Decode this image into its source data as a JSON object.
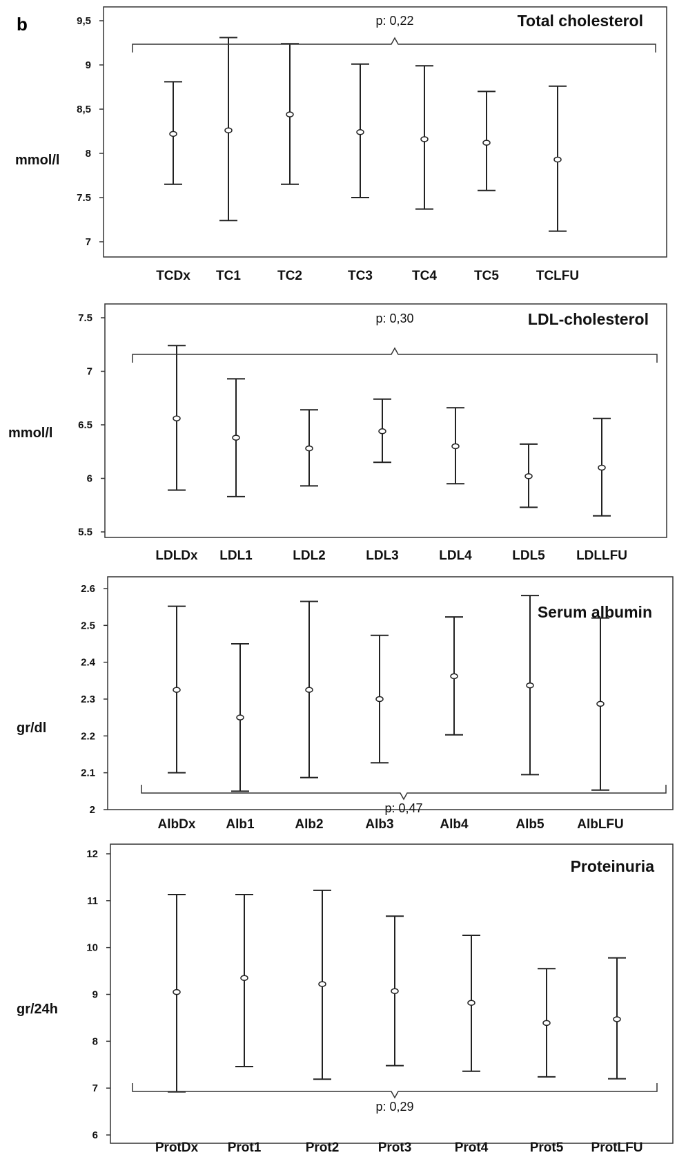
{
  "panel_label": "b",
  "chart_data": [
    {
      "type": "errorbar",
      "title": "Total cholesterol",
      "ylabel": "mmol/l",
      "ylim": [
        7,
        9.5
      ],
      "yticks": [
        "7",
        "7.5",
        "8",
        "8,5",
        "9",
        "9,5"
      ],
      "categories": [
        "TCDx",
        "TC1",
        "TC2",
        "TC3",
        "TC4",
        "TC5",
        "TCLFU"
      ],
      "means": [
        8.22,
        8.26,
        8.44,
        8.24,
        8.16,
        8.12,
        7.93
      ],
      "lower": [
        7.65,
        7.24,
        7.65,
        7.5,
        7.37,
        7.58,
        7.12
      ],
      "upper": [
        8.81,
        9.31,
        9.24,
        9.01,
        8.99,
        8.7,
        8.76
      ],
      "p_value": "p: 0,22"
    },
    {
      "type": "errorbar",
      "title": "LDL-cholesterol",
      "ylabel": "mmol/l",
      "ylim": [
        5.5,
        7.5
      ],
      "yticks": [
        "5.5",
        "6",
        "6.5",
        "7",
        "7.5"
      ],
      "categories": [
        "LDLDx",
        "LDL1",
        "LDL2",
        "LDL3",
        "LDL4",
        "LDL5",
        "LDLLFU"
      ],
      "means": [
        6.56,
        6.38,
        6.28,
        6.44,
        6.3,
        6.02,
        6.1
      ],
      "lower": [
        5.89,
        5.83,
        5.93,
        6.15,
        5.95,
        5.73,
        5.65
      ],
      "upper": [
        7.24,
        6.93,
        6.64,
        6.74,
        6.66,
        6.32,
        6.56
      ],
      "p_value": "p: 0,30"
    },
    {
      "type": "errorbar",
      "title": "Serum albumin",
      "ylabel": "gr/dl",
      "ylim": [
        2,
        2.6
      ],
      "yticks": [
        "2",
        "2.1",
        "2.2",
        "2.3",
        "2.4",
        "2.5",
        "2.6"
      ],
      "categories": [
        "AlbDx",
        "Alb1",
        "Alb2",
        "Alb3",
        "Alb4",
        "Alb5",
        "AlbLFU"
      ],
      "means": [
        2.325,
        2.25,
        2.325,
        2.3,
        2.362,
        2.337,
        2.287
      ],
      "lower": [
        2.1,
        2.05,
        2.087,
        2.127,
        2.203,
        2.095,
        2.053
      ],
      "upper": [
        2.552,
        2.45,
        2.565,
        2.473,
        2.523,
        2.581,
        2.52
      ],
      "p_value": "p: 0,47"
    },
    {
      "type": "errorbar",
      "title": "Proteinuria",
      "ylabel": "gr/24h",
      "ylim": [
        6,
        12
      ],
      "yticks": [
        "6",
        "7",
        "8",
        "9",
        "10",
        "11",
        "12"
      ],
      "categories": [
        "ProtDx",
        "Prot1",
        "Prot2",
        "Prot3",
        "Prot4",
        "Prot5",
        "ProtLFU"
      ],
      "means": [
        9.05,
        9.35,
        9.22,
        9.07,
        8.82,
        8.39,
        8.47
      ],
      "lower": [
        6.92,
        7.46,
        7.19,
        7.48,
        7.36,
        7.24,
        7.2
      ],
      "upper": [
        11.13,
        11.13,
        11.22,
        10.67,
        10.26,
        9.55,
        9.78
      ],
      "p_value": "p: 0,29"
    }
  ]
}
